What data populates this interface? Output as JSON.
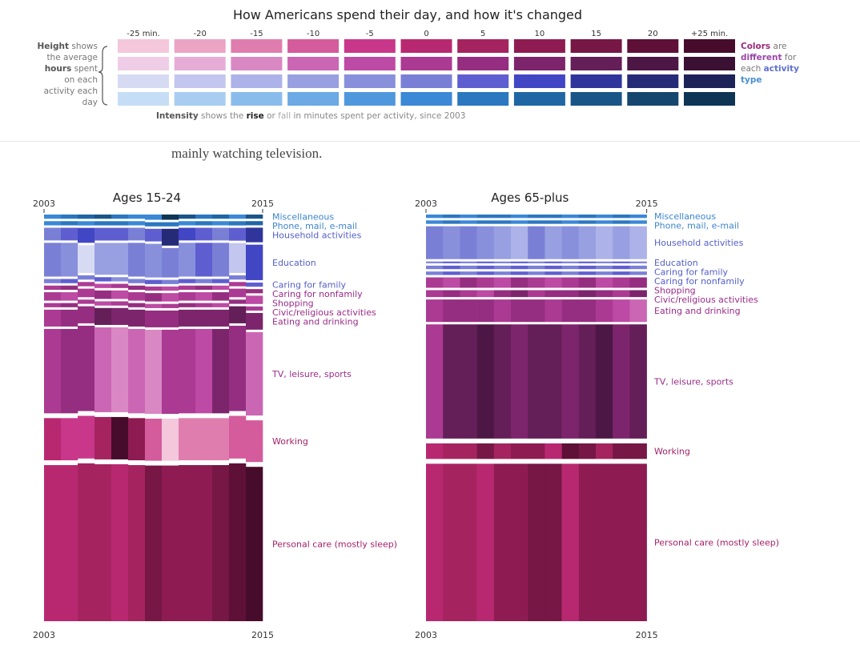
{
  "legend": {
    "title": "How Americans spend their day, and how it's changed",
    "scale_labels": [
      "-25 min.",
      "-20",
      "-15",
      "-10",
      "-5",
      "0",
      "5",
      "10",
      "15",
      "20",
      "+25 min."
    ],
    "scale_values": [
      -25,
      -20,
      -15,
      -10,
      -5,
      0,
      5,
      10,
      15,
      20,
      25
    ],
    "left": {
      "w1": "Height",
      "t1": " shows the average ",
      "w2": "hours",
      "t2": " spent on each activity each day"
    },
    "right": {
      "w1": "Colors",
      "t1": " are ",
      "w2": "different",
      "t2": " for each ",
      "w3": "activity",
      "w4": "type"
    },
    "caption": {
      "w1": "Intensity",
      "t1": " shows the ",
      "w2": "rise",
      "t2": " or ",
      "w3": "fall",
      "t3": " in minutes spent per activity, since 2003"
    }
  },
  "intro_text": "mainly watching television.",
  "colors": {
    "personal": [
      "#f4c7db",
      "#eca4c4",
      "#df7eae",
      "#d45b9c",
      "#c9378a",
      "#b82871",
      "#a5245f",
      "#8e1c53",
      "#761745",
      "#5e1037",
      "#470c2b"
    ],
    "tv": [
      "#f0cde6",
      "#e6acd6",
      "#d988c4",
      "#cb66b4",
      "#bd4aa4",
      "#ab3a93",
      "#952e80",
      "#7c256c",
      "#641e58",
      "#4d1745",
      "#3a1133"
    ],
    "household": [
      "#d6daf3",
      "#c3c6ee",
      "#adb2e8",
      "#98a0e1",
      "#8890dc",
      "#7a7fd6",
      "#5f5ed0",
      "#4146c4",
      "#30359c",
      "#262b78",
      "#1d2258"
    ],
    "misc": [
      "#c5def6",
      "#a8cdf1",
      "#8abceb",
      "#6ca9e5",
      "#4f97dd",
      "#3a88d6",
      "#2b77c0",
      "#2066a4",
      "#1a5588",
      "#15466e",
      "#0f3554"
    ]
  },
  "chart_data": [
    {
      "type": "area",
      "title": "Ages 15-24",
      "x_start_label": "2003",
      "x_end_label": "2015",
      "x": [
        2003,
        2004,
        2005,
        2006,
        2007,
        2008,
        2009,
        2010,
        2011,
        2012,
        2013,
        2014,
        2015
      ],
      "series": [
        {
          "name": "Miscellaneous",
          "group": "misc",
          "hours": [
            0.2,
            0.2,
            0.2,
            0.2,
            0.2,
            0.2,
            0.25,
            0.25,
            0.2,
            0.2,
            0.2,
            0.2,
            0.2
          ],
          "change": [
            0,
            5,
            10,
            15,
            5,
            0,
            0,
            25,
            15,
            5,
            10,
            0,
            15
          ]
        },
        {
          "name": "Phone, mail, e-mail",
          "group": "misc",
          "hours": [
            0.2,
            0.2,
            0.2,
            0.2,
            0.2,
            0.2,
            0.2,
            0.2,
            0.2,
            0.2,
            0.2,
            0.2,
            0.2
          ],
          "change": [
            0,
            5,
            0,
            5,
            5,
            0,
            5,
            5,
            0,
            5,
            0,
            5,
            10
          ]
        },
        {
          "name": "Household activities",
          "group": "household",
          "hours": [
            0.6,
            0.6,
            0.7,
            0.6,
            0.6,
            0.6,
            0.6,
            0.8,
            0.6,
            0.6,
            0.6,
            0.6,
            0.7
          ],
          "change": [
            0,
            5,
            10,
            5,
            5,
            0,
            5,
            20,
            10,
            5,
            0,
            5,
            15
          ]
        },
        {
          "name": "Education",
          "group": "household",
          "hours": [
            1.6,
            1.6,
            1.3,
            1.5,
            1.5,
            1.6,
            1.6,
            1.4,
            1.6,
            1.6,
            1.6,
            1.4,
            1.7
          ],
          "change": [
            0,
            -5,
            -25,
            -10,
            -10,
            0,
            -5,
            0,
            -5,
            5,
            0,
            -20,
            10
          ]
        },
        {
          "name": "Caring for family",
          "group": "household",
          "hours": [
            0.2,
            0.2,
            0.2,
            0.2,
            0.2,
            0.2,
            0.2,
            0.2,
            0.2,
            0.2,
            0.2,
            0.2,
            0.2
          ],
          "change": [
            0,
            5,
            0,
            5,
            -5,
            0,
            5,
            0,
            5,
            0,
            5,
            0,
            5
          ]
        },
        {
          "name": "Caring for nonfamily",
          "group": "tv",
          "hours": [
            0.2,
            0.2,
            0.2,
            0.2,
            0.2,
            0.2,
            0.2,
            0.2,
            0.2,
            0.2,
            0.2,
            0.2,
            0.2
          ],
          "change": [
            0,
            5,
            0,
            -5,
            0,
            5,
            0,
            -5,
            0,
            5,
            -5,
            0,
            5
          ]
        },
        {
          "name": "Shopping",
          "group": "tv",
          "hours": [
            0.4,
            0.4,
            0.4,
            0.4,
            0.4,
            0.4,
            0.4,
            0.4,
            0.4,
            0.4,
            0.4,
            0.4,
            0.4
          ],
          "change": [
            0,
            -5,
            0,
            5,
            -5,
            0,
            5,
            -5,
            0,
            -5,
            5,
            0,
            -5
          ]
        },
        {
          "name": "Civic/religious activities",
          "group": "tv",
          "hours": [
            0.2,
            0.2,
            0.2,
            0.2,
            0.2,
            0.2,
            0.2,
            0.2,
            0.2,
            0.2,
            0.2,
            0.2,
            0.2
          ],
          "change": [
            0,
            5,
            0,
            -5,
            0,
            5,
            -5,
            0,
            5,
            0,
            -5,
            5,
            0
          ]
        },
        {
          "name": "Eating and drinking",
          "group": "tv",
          "hours": [
            0.8,
            0.8,
            0.8,
            0.8,
            0.8,
            0.8,
            0.8,
            0.8,
            0.8,
            0.8,
            0.8,
            0.8,
            0.8
          ],
          "change": [
            0,
            5,
            5,
            15,
            10,
            10,
            5,
            5,
            10,
            10,
            10,
            15,
            10
          ]
        },
        {
          "name": "TV, leisure, sports",
          "group": "tv",
          "hours": [
            4.0,
            4.0,
            4.0,
            4.0,
            4.0,
            4.0,
            4.0,
            4.0,
            4.0,
            4.0,
            4.0,
            4.0,
            4.0
          ],
          "change": [
            0,
            5,
            5,
            -10,
            -15,
            -10,
            -15,
            0,
            0,
            -5,
            10,
            5,
            -10
          ]
        },
        {
          "name": "Working",
          "group": "personal",
          "hours": [
            2.0,
            2.0,
            2.0,
            2.0,
            2.0,
            2.0,
            2.0,
            2.0,
            2.0,
            2.0,
            2.0,
            2.0,
            2.0
          ],
          "change": [
            0,
            -5,
            -5,
            5,
            25,
            10,
            -10,
            -25,
            -15,
            -15,
            -15,
            -10,
            -10
          ]
        },
        {
          "name": "Personal care (mostly sleep)",
          "group": "personal",
          "hours": [
            7.4,
            7.4,
            7.4,
            7.4,
            7.4,
            7.4,
            7.4,
            7.4,
            7.4,
            7.4,
            7.4,
            7.4,
            7.4
          ],
          "change": [
            0,
            0,
            5,
            5,
            0,
            5,
            15,
            10,
            10,
            10,
            15,
            20,
            25
          ]
        }
      ]
    },
    {
      "type": "area",
      "title": "Ages 65-plus",
      "x_start_label": "2003",
      "x_end_label": "2015",
      "x": [
        2003,
        2004,
        2005,
        2006,
        2007,
        2008,
        2009,
        2010,
        2011,
        2012,
        2013,
        2014,
        2015
      ],
      "series": [
        {
          "name": "Miscellaneous",
          "group": "misc",
          "hours": [
            0.2,
            0.2,
            0.2,
            0.2,
            0.2,
            0.2,
            0.2,
            0.2,
            0.2,
            0.2,
            0.2,
            0.2,
            0.2
          ],
          "change": [
            0,
            5,
            0,
            5,
            5,
            0,
            5,
            5,
            0,
            5,
            0,
            5,
            0
          ]
        },
        {
          "name": "Phone, mail, e-mail",
          "group": "misc",
          "hours": [
            0.2,
            0.2,
            0.2,
            0.2,
            0.2,
            0.2,
            0.2,
            0.2,
            0.2,
            0.2,
            0.2,
            0.2,
            0.2
          ],
          "change": [
            0,
            5,
            0,
            5,
            5,
            0,
            5,
            5,
            0,
            5,
            0,
            5,
            0
          ]
        },
        {
          "name": "Household activities",
          "group": "household",
          "hours": [
            1.9,
            1.9,
            1.9,
            1.9,
            1.9,
            1.9,
            1.9,
            1.9,
            1.9,
            1.9,
            1.9,
            1.9,
            1.9
          ],
          "change": [
            0,
            -5,
            0,
            -5,
            -10,
            -15,
            0,
            -10,
            -5,
            -10,
            -15,
            -10,
            -15
          ]
        },
        {
          "name": "Education",
          "group": "household",
          "hours": [
            0.1,
            0.1,
            0.1,
            0.1,
            0.1,
            0.1,
            0.1,
            0.1,
            0.1,
            0.1,
            0.1,
            0.1,
            0.1
          ],
          "change": [
            0,
            5,
            0,
            5,
            0,
            5,
            0,
            5,
            0,
            5,
            0,
            5,
            0
          ]
        },
        {
          "name": "Caring for family",
          "group": "household",
          "hours": [
            0.2,
            0.2,
            0.2,
            0.2,
            0.2,
            0.2,
            0.2,
            0.2,
            0.2,
            0.2,
            0.2,
            0.2,
            0.2
          ],
          "change": [
            0,
            5,
            0,
            5,
            0,
            5,
            0,
            5,
            0,
            5,
            0,
            5,
            0
          ]
        },
        {
          "name": "Caring for nonfamily",
          "group": "household",
          "hours": [
            0.2,
            0.2,
            0.2,
            0.2,
            0.2,
            0.2,
            0.2,
            0.2,
            0.2,
            0.2,
            0.2,
            0.2,
            0.2
          ],
          "change": [
            0,
            5,
            0,
            5,
            0,
            5,
            0,
            5,
            0,
            5,
            0,
            5,
            0
          ]
        },
        {
          "name": "Shopping",
          "group": "tv",
          "hours": [
            0.6,
            0.6,
            0.6,
            0.6,
            0.6,
            0.6,
            0.6,
            0.6,
            0.6,
            0.6,
            0.6,
            0.6,
            0.6
          ],
          "change": [
            0,
            -5,
            5,
            0,
            -5,
            5,
            0,
            -5,
            0,
            5,
            -5,
            0,
            5
          ]
        },
        {
          "name": "Civic/religious activities",
          "group": "tv",
          "hours": [
            0.4,
            0.4,
            0.4,
            0.4,
            0.4,
            0.4,
            0.4,
            0.4,
            0.4,
            0.4,
            0.4,
            0.4,
            0.4
          ],
          "change": [
            0,
            5,
            0,
            -5,
            5,
            10,
            0,
            5,
            5,
            10,
            5,
            0,
            10
          ]
        },
        {
          "name": "Eating and drinking",
          "group": "tv",
          "hours": [
            1.3,
            1.3,
            1.3,
            1.3,
            1.3,
            1.3,
            1.3,
            1.3,
            1.3,
            1.3,
            1.3,
            1.3,
            1.3
          ],
          "change": [
            0,
            5,
            5,
            5,
            0,
            5,
            5,
            0,
            5,
            5,
            0,
            -5,
            -10
          ]
        },
        {
          "name": "TV, leisure, sports",
          "group": "tv",
          "hours": [
            6.6,
            6.6,
            6.6,
            6.6,
            6.6,
            6.6,
            6.6,
            6.6,
            6.6,
            6.6,
            6.6,
            6.6,
            6.6
          ],
          "change": [
            0,
            15,
            15,
            20,
            15,
            10,
            15,
            15,
            10,
            15,
            20,
            10,
            15
          ]
        },
        {
          "name": "Working",
          "group": "personal",
          "hours": [
            0.9,
            0.9,
            0.9,
            0.9,
            0.9,
            0.9,
            0.9,
            0.9,
            0.9,
            0.9,
            0.9,
            0.9,
            0.9
          ],
          "change": [
            0,
            5,
            5,
            15,
            5,
            10,
            10,
            0,
            20,
            15,
            5,
            15,
            15
          ]
        },
        {
          "name": "Personal care (mostly sleep)",
          "group": "personal",
          "hours": [
            9.1,
            9.1,
            9.1,
            9.1,
            9.1,
            9.1,
            9.1,
            9.1,
            9.1,
            9.1,
            9.1,
            9.1,
            9.1
          ],
          "change": [
            0,
            5,
            5,
            0,
            10,
            10,
            15,
            15,
            0,
            10,
            10,
            10,
            10
          ]
        }
      ]
    }
  ]
}
